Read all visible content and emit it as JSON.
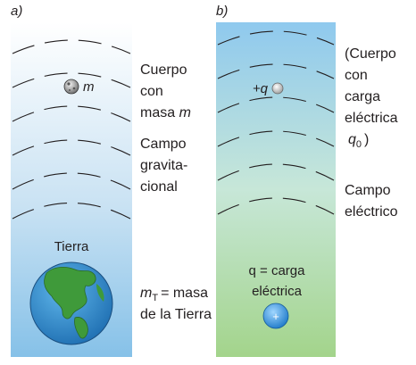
{
  "panel_a": {
    "label": "a)",
    "body_symbol": "m",
    "body_label_lines": [
      "Cuerpo",
      "con",
      "masa m"
    ],
    "field_label_lines": [
      "Campo",
      "gravita-",
      "cional"
    ],
    "earth_label": "Tierra",
    "mass_label_lines": [
      "mT = masa",
      "de la Tierra"
    ],
    "mass_symbol": "m",
    "mass_subscript": "T",
    "mass_rest": "= masa",
    "mass_line2": "de la Tierra",
    "colors": {
      "gradient_top": "#ffffff",
      "gradient_bottom": "#8cc4e8",
      "earth_ocean": "#2f8fd0",
      "earth_land": "#3f9a3a"
    }
  },
  "panel_b": {
    "label": "b)",
    "test_charge_label": "+q",
    "body_label_lines": [
      "(Cuerpo",
      "con",
      "carga",
      "eléctrica",
      "q0 )"
    ],
    "body_label_last_symbol": "q",
    "body_label_last_subscript": "0",
    "body_label_last_rest": ")",
    "field_label_lines": [
      "Campo",
      "eléctrico"
    ],
    "source_label_lines": [
      "q = carga",
      "eléctrica"
    ],
    "source_symbol": "+",
    "colors": {
      "gradient_top": "#8ec8ec",
      "gradient_bottom": "#a6d48e",
      "source_charge": "#2f94de",
      "test_charge": "#c8c8c8"
    }
  }
}
